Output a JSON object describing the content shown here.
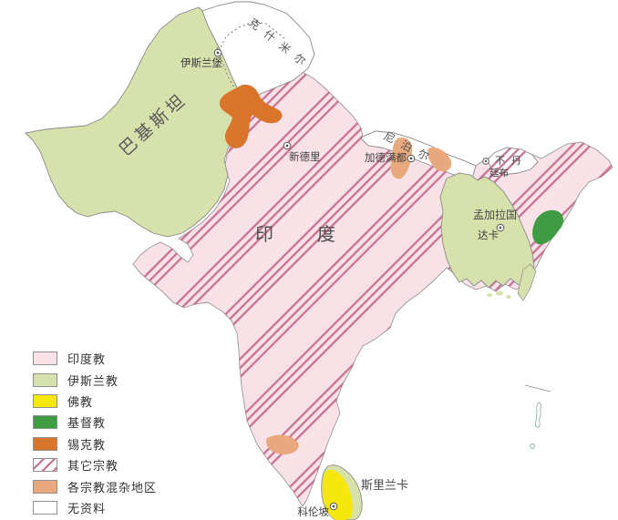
{
  "labels": {
    "pakistan": "巴基斯坦",
    "india": "印度",
    "kashmir": "克什米尔",
    "nepal": "尼泊尔",
    "bhutan": "不丹",
    "bangladesh": "孟加拉国",
    "sri_lanka": "斯里兰卡"
  },
  "cities": {
    "islamabad": "伊斯兰堡",
    "new_delhi": "新德里",
    "kathmandu": "加德满都",
    "thimphu": "廷布",
    "dhaka": "达卡",
    "colombo": "科伦坡"
  },
  "legend": {
    "items": [
      {
        "label": "印度教",
        "swatch": "hindu"
      },
      {
        "label": "伊斯兰教",
        "swatch": "islam"
      },
      {
        "label": "佛教",
        "swatch": "buddhism"
      },
      {
        "label": "基督教",
        "swatch": "christianity"
      },
      {
        "label": "锡克教",
        "swatch": "sikhism"
      },
      {
        "label": "其它宗教",
        "swatch": "other"
      },
      {
        "label": "各宗教混杂地区",
        "swatch": "mixed"
      },
      {
        "label": "无资料",
        "swatch": "nodata"
      }
    ]
  },
  "colors": {
    "hindu": "#f8e2e8",
    "islam": "#d7e1ac",
    "buddhism": "#f6e70c",
    "christianity": "#3f9c42",
    "sikhism": "#d8752a",
    "stripe": "#c76f94",
    "mixed": "#e9a97e",
    "nodata": "#ffffff",
    "border": "#929292",
    "island_outline": "#8fb3a6"
  }
}
